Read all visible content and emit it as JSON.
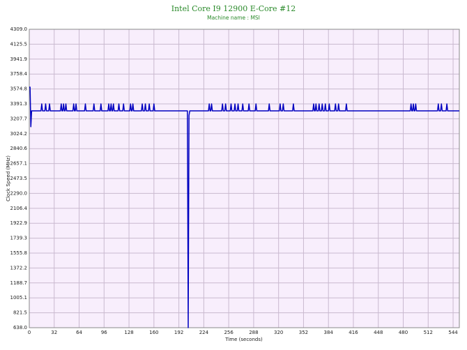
{
  "chart_data": {
    "type": "line",
    "title": "Intel Core I9 12900 E-Core #12",
    "subtitle": "Machine name : MSI",
    "x_label": "Time (seconds)",
    "y_label": "Clock Speed (MHz)",
    "xlim": [
      0,
      552
    ],
    "ylim": [
      638,
      4309
    ],
    "xticks": [
      0,
      32,
      64,
      96,
      128,
      160,
      192,
      224,
      256,
      288,
      320,
      352,
      384,
      416,
      448,
      480,
      512,
      544
    ],
    "yticks": [
      {
        "value": 638,
        "label": "638.0"
      },
      821.5,
      1005.1,
      1188.7,
      1372.2,
      1555.8,
      1739.3,
      1922.9,
      2106.4,
      {
        "value": 2290,
        "label": "2290.0"
      },
      2473.5,
      2657.1,
      2840.6,
      3024.2,
      3207.7,
      3391.3,
      3574.8,
      3758.4,
      3941.9,
      4125.5,
      {
        "value": 4309,
        "label": "4309.0"
      }
    ],
    "grid": true,
    "series": [
      {
        "color": "#0000c0",
        "x": [
          0,
          1,
          2,
          3,
          15,
          16,
          17,
          20,
          21,
          22,
          25,
          26,
          27,
          40,
          41,
          42,
          43,
          44,
          45,
          46,
          47,
          48,
          56,
          57,
          58,
          59,
          60,
          61,
          71,
          72,
          73,
          82,
          83,
          84,
          91,
          92,
          93,
          101,
          102,
          103,
          104,
          105,
          106,
          107,
          108,
          109,
          114,
          115,
          116,
          120,
          121,
          122,
          129,
          130,
          131,
          132,
          133,
          134,
          144,
          145,
          146,
          148,
          149,
          150,
          153,
          154,
          155,
          159,
          160,
          161,
          203,
          204,
          205,
          206,
          230,
          231,
          232,
          233,
          234,
          235,
          247,
          248,
          249,
          251,
          252,
          253,
          258,
          259,
          260,
          263,
          264,
          265,
          267,
          268,
          269,
          273,
          274,
          275,
          281,
          282,
          283,
          290,
          291,
          292,
          307,
          308,
          309,
          321,
          322,
          323,
          325,
          326,
          327,
          338,
          339,
          340,
          364,
          365,
          366,
          367,
          368,
          369,
          371,
          372,
          373,
          375,
          376,
          377,
          379,
          380,
          381,
          384,
          385,
          386,
          392,
          393,
          394,
          396,
          397,
          398,
          406,
          407,
          408,
          489,
          490,
          491,
          492,
          493,
          494,
          495,
          496,
          497,
          524,
          525,
          526,
          528,
          529,
          530,
          535,
          536,
          537,
          552
        ],
        "values": [
          3597,
          3597,
          3110,
          3305,
          3305,
          3391,
          3305,
          3305,
          3391,
          3305,
          3305,
          3391,
          3305,
          3305,
          3391,
          3305,
          3305,
          3391,
          3305,
          3305,
          3391,
          3305,
          3305,
          3391,
          3305,
          3305,
          3391,
          3305,
          3305,
          3391,
          3305,
          3305,
          3391,
          3305,
          3305,
          3391,
          3305,
          3305,
          3391,
          3305,
          3305,
          3391,
          3305,
          3305,
          3391,
          3305,
          3305,
          3391,
          3305,
          3305,
          3391,
          3305,
          3305,
          3391,
          3305,
          3305,
          3391,
          3305,
          3305,
          3391,
          3305,
          3305,
          3391,
          3305,
          3305,
          3391,
          3305,
          3305,
          3391,
          3305,
          3305,
          638,
          3250,
          3305,
          3305,
          3391,
          3305,
          3305,
          3391,
          3305,
          3305,
          3391,
          3305,
          3305,
          3391,
          3305,
          3305,
          3391,
          3305,
          3305,
          3391,
          3305,
          3305,
          3391,
          3305,
          3305,
          3391,
          3305,
          3305,
          3391,
          3305,
          3305,
          3391,
          3305,
          3305,
          3391,
          3305,
          3305,
          3391,
          3305,
          3305,
          3391,
          3305,
          3305,
          3391,
          3305,
          3305,
          3391,
          3305,
          3305,
          3391,
          3305,
          3305,
          3391,
          3305,
          3305,
          3391,
          3305,
          3305,
          3391,
          3305,
          3305,
          3391,
          3305,
          3305,
          3391,
          3305,
          3305,
          3391,
          3305,
          3305,
          3391,
          3305,
          3305,
          3391,
          3305,
          3305,
          3391,
          3305,
          3305,
          3391,
          3305,
          3305,
          3391,
          3305,
          3305,
          3391,
          3305,
          3305,
          3391,
          3305,
          3305
        ]
      }
    ]
  }
}
